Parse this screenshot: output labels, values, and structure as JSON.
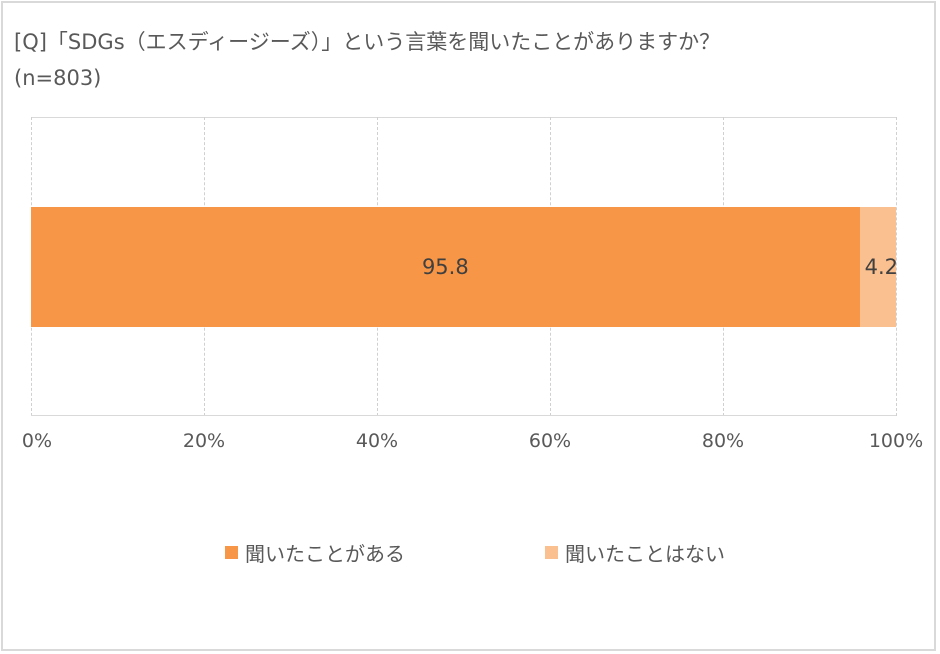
{
  "title": {
    "line1": "[Q]「SDGs（エスディージーズ）」という言葉を聞いたことがありますか？",
    "line2": "(n=803)"
  },
  "colors": {
    "heard": "#f79646",
    "not_heard": "#fac090",
    "grid": "#d0d0d0",
    "border": "#d9d9d9"
  },
  "axis": {
    "ticks": [
      "0%",
      "20%",
      "40%",
      "60%",
      "80%",
      "100%"
    ]
  },
  "legend": {
    "items": [
      {
        "label": "聞いたことがある"
      },
      {
        "label": "聞いたことはない"
      }
    ]
  },
  "bar": {
    "segments": [
      {
        "label": "95.8"
      },
      {
        "label": "4.2"
      }
    ]
  },
  "chart_data": {
    "type": "bar",
    "orientation": "horizontal",
    "stacked": true,
    "percent_stacked": true,
    "title": "[Q]「SDGs（エスディージーズ）」という言葉を聞いたことがありますか？",
    "subtitle": "(n=803)",
    "categories": [
      ""
    ],
    "series": [
      {
        "name": "聞いたことがある",
        "values": [
          95.8
        ],
        "color": "#f79646"
      },
      {
        "name": "聞いたことはない",
        "values": [
          4.2
        ],
        "color": "#fac090"
      }
    ],
    "xlabel": "",
    "ylabel": "",
    "xlim": [
      0,
      100
    ],
    "xticks": [
      "0%",
      "20%",
      "40%",
      "60%",
      "80%",
      "100%"
    ],
    "grid": "vertical dashed",
    "legend_position": "bottom"
  }
}
